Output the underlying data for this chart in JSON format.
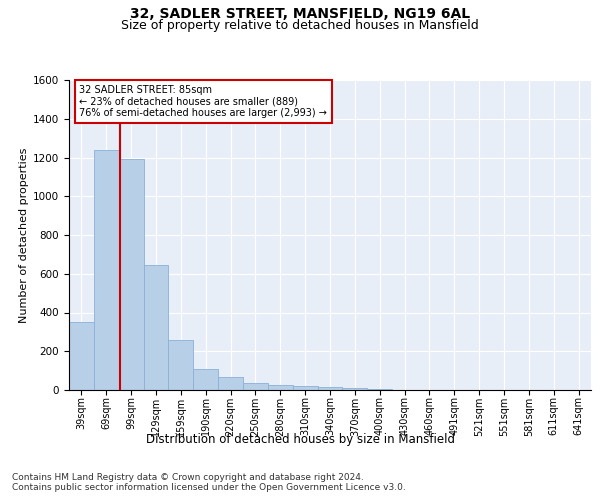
{
  "title1": "32, SADLER STREET, MANSFIELD, NG19 6AL",
  "title2": "Size of property relative to detached houses in Mansfield",
  "xlabel": "Distribution of detached houses by size in Mansfield",
  "ylabel": "Number of detached properties",
  "categories": [
    "39sqm",
    "69sqm",
    "99sqm",
    "129sqm",
    "159sqm",
    "190sqm",
    "220sqm",
    "250sqm",
    "280sqm",
    "310sqm",
    "340sqm",
    "370sqm",
    "400sqm",
    "430sqm",
    "460sqm",
    "491sqm",
    "521sqm",
    "551sqm",
    "581sqm",
    "611sqm",
    "641sqm"
  ],
  "values": [
    350,
    1240,
    1190,
    645,
    260,
    110,
    65,
    35,
    25,
    20,
    15,
    10,
    5,
    2,
    1,
    1,
    0,
    0,
    0,
    0,
    0
  ],
  "bar_color": "#b8cfe8",
  "bar_edgecolor": "#8ab0d8",
  "vline_x": 1.55,
  "vline_color": "#cc0000",
  "ylim": [
    0,
    1600
  ],
  "yticks": [
    0,
    200,
    400,
    600,
    800,
    1000,
    1200,
    1400,
    1600
  ],
  "annotation_title": "32 SADLER STREET: 85sqm",
  "annotation_line1": "← 23% of detached houses are smaller (889)",
  "annotation_line2": "76% of semi-detached houses are larger (2,993) →",
  "annotation_box_color": "#cc0000",
  "background_color": "#e8eef8",
  "grid_color": "#ffffff",
  "footnote1": "Contains HM Land Registry data © Crown copyright and database right 2024.",
  "footnote2": "Contains public sector information licensed under the Open Government Licence v3.0."
}
